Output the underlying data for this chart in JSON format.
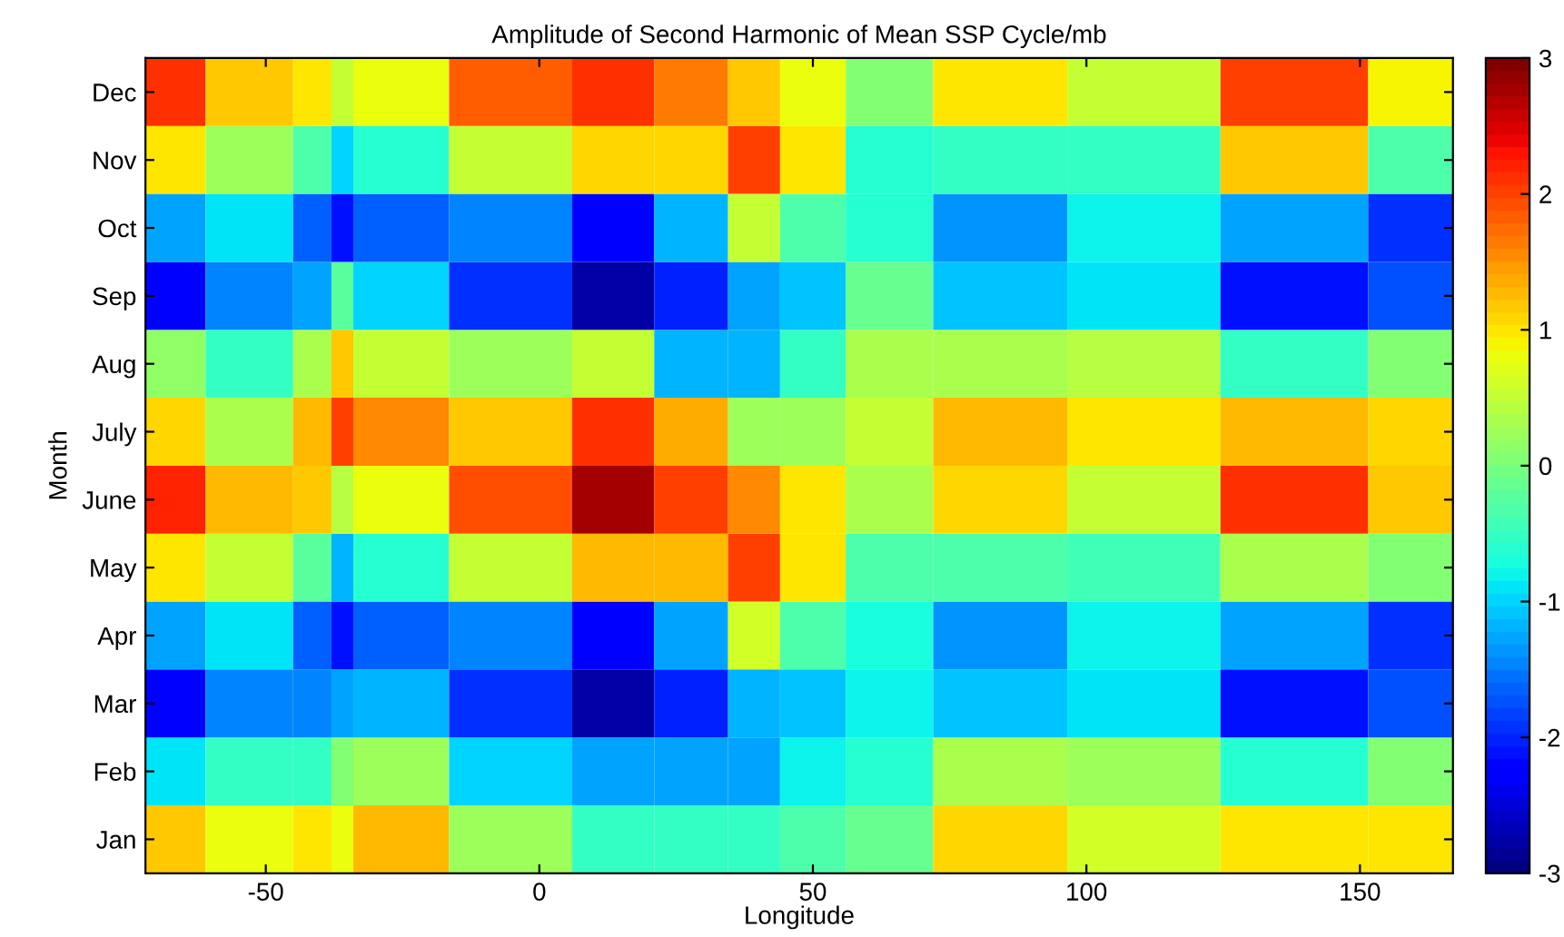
{
  "chart_data": {
    "type": "heatmap",
    "title": "Amplitude of Second Harmonic of Mean SSP Cycle/mb",
    "xlabel": "Longitude",
    "ylabel": "Month",
    "x": [
      -72,
      -50,
      -40,
      -36,
      -32,
      -1,
      13,
      29,
      40,
      48,
      64,
      80,
      113,
      136,
      167
    ],
    "y_categories": [
      "Dec",
      "Nov",
      "Oct",
      "Sep",
      "Aug",
      "July",
      "June",
      "May",
      "Apr",
      "Mar",
      "Feb",
      "Jan"
    ],
    "cells": [
      [
        2.1,
        1.2,
        1.0,
        0.5,
        0.8,
        1.8,
        2.1,
        1.6,
        1.2,
        0.8,
        0.0,
        1.0,
        0.5,
        2.05,
        0.9
      ],
      [
        1.0,
        0.2,
        -0.3,
        -1.0,
        -0.6,
        0.5,
        1.1,
        1.1,
        2.05,
        1.0,
        -0.6,
        -0.5,
        -0.5,
        1.2,
        -0.3
      ],
      [
        -1.3,
        -0.9,
        -1.6,
        -2.1,
        -1.6,
        -1.5,
        -2.2,
        -1.2,
        0.5,
        -0.3,
        -0.6,
        -1.4,
        -0.8,
        -1.3,
        -1.9
      ],
      [
        -2.3,
        -1.5,
        -1.3,
        -0.2,
        -1.0,
        -1.95,
        -2.8,
        -2.0,
        -1.3,
        -1.1,
        -0.1,
        -1.1,
        -0.9,
        -2.1,
        -1.7
      ],
      [
        0.1,
        -0.5,
        0.3,
        1.2,
        0.5,
        0.2,
        0.5,
        -1.2,
        -1.2,
        -0.5,
        0.3,
        0.3,
        0.4,
        -0.5,
        0.0
      ],
      [
        1.1,
        0.3,
        1.3,
        2.0,
        1.5,
        1.2,
        2.1,
        1.4,
        0.2,
        0.2,
        0.5,
        1.3,
        1.0,
        1.3,
        1.1
      ],
      [
        2.2,
        1.3,
        1.2,
        0.4,
        0.8,
        1.95,
        2.8,
        2.0,
        1.5,
        1.0,
        0.3,
        1.05,
        0.5,
        2.1,
        1.2
      ],
      [
        1.0,
        0.5,
        -0.2,
        -1.2,
        -0.6,
        0.5,
        1.3,
        1.3,
        2.05,
        1.0,
        -0.3,
        -0.3,
        -0.4,
        0.3,
        0.0
      ],
      [
        -1.3,
        -0.9,
        -1.6,
        -2.1,
        -1.6,
        -1.5,
        -2.2,
        -1.3,
        0.6,
        -0.3,
        -0.7,
        -1.4,
        -0.8,
        -1.3,
        -1.9
      ],
      [
        -2.3,
        -1.5,
        -1.5,
        -1.3,
        -1.2,
        -1.95,
        -2.8,
        -2.0,
        -1.2,
        -1.1,
        -0.8,
        -1.1,
        -0.9,
        -2.1,
        -1.7
      ],
      [
        -0.9,
        -0.5,
        -0.5,
        0.0,
        0.2,
        -1.0,
        -1.3,
        -1.3,
        -1.3,
        -0.8,
        -0.6,
        0.3,
        0.2,
        -0.6,
        0.0
      ],
      [
        1.2,
        0.8,
        1.0,
        0.8,
        1.3,
        0.2,
        -0.5,
        -0.5,
        -0.5,
        -0.3,
        -0.1,
        1.1,
        0.6,
        1.0,
        1.0
      ]
    ],
    "xlim": [
      -72,
      167
    ],
    "xticks": [
      -50,
      0,
      50,
      100,
      150
    ],
    "clim": [
      -3,
      3
    ],
    "cticks": [
      -3,
      -2,
      -1,
      0,
      1,
      2,
      3
    ]
  }
}
